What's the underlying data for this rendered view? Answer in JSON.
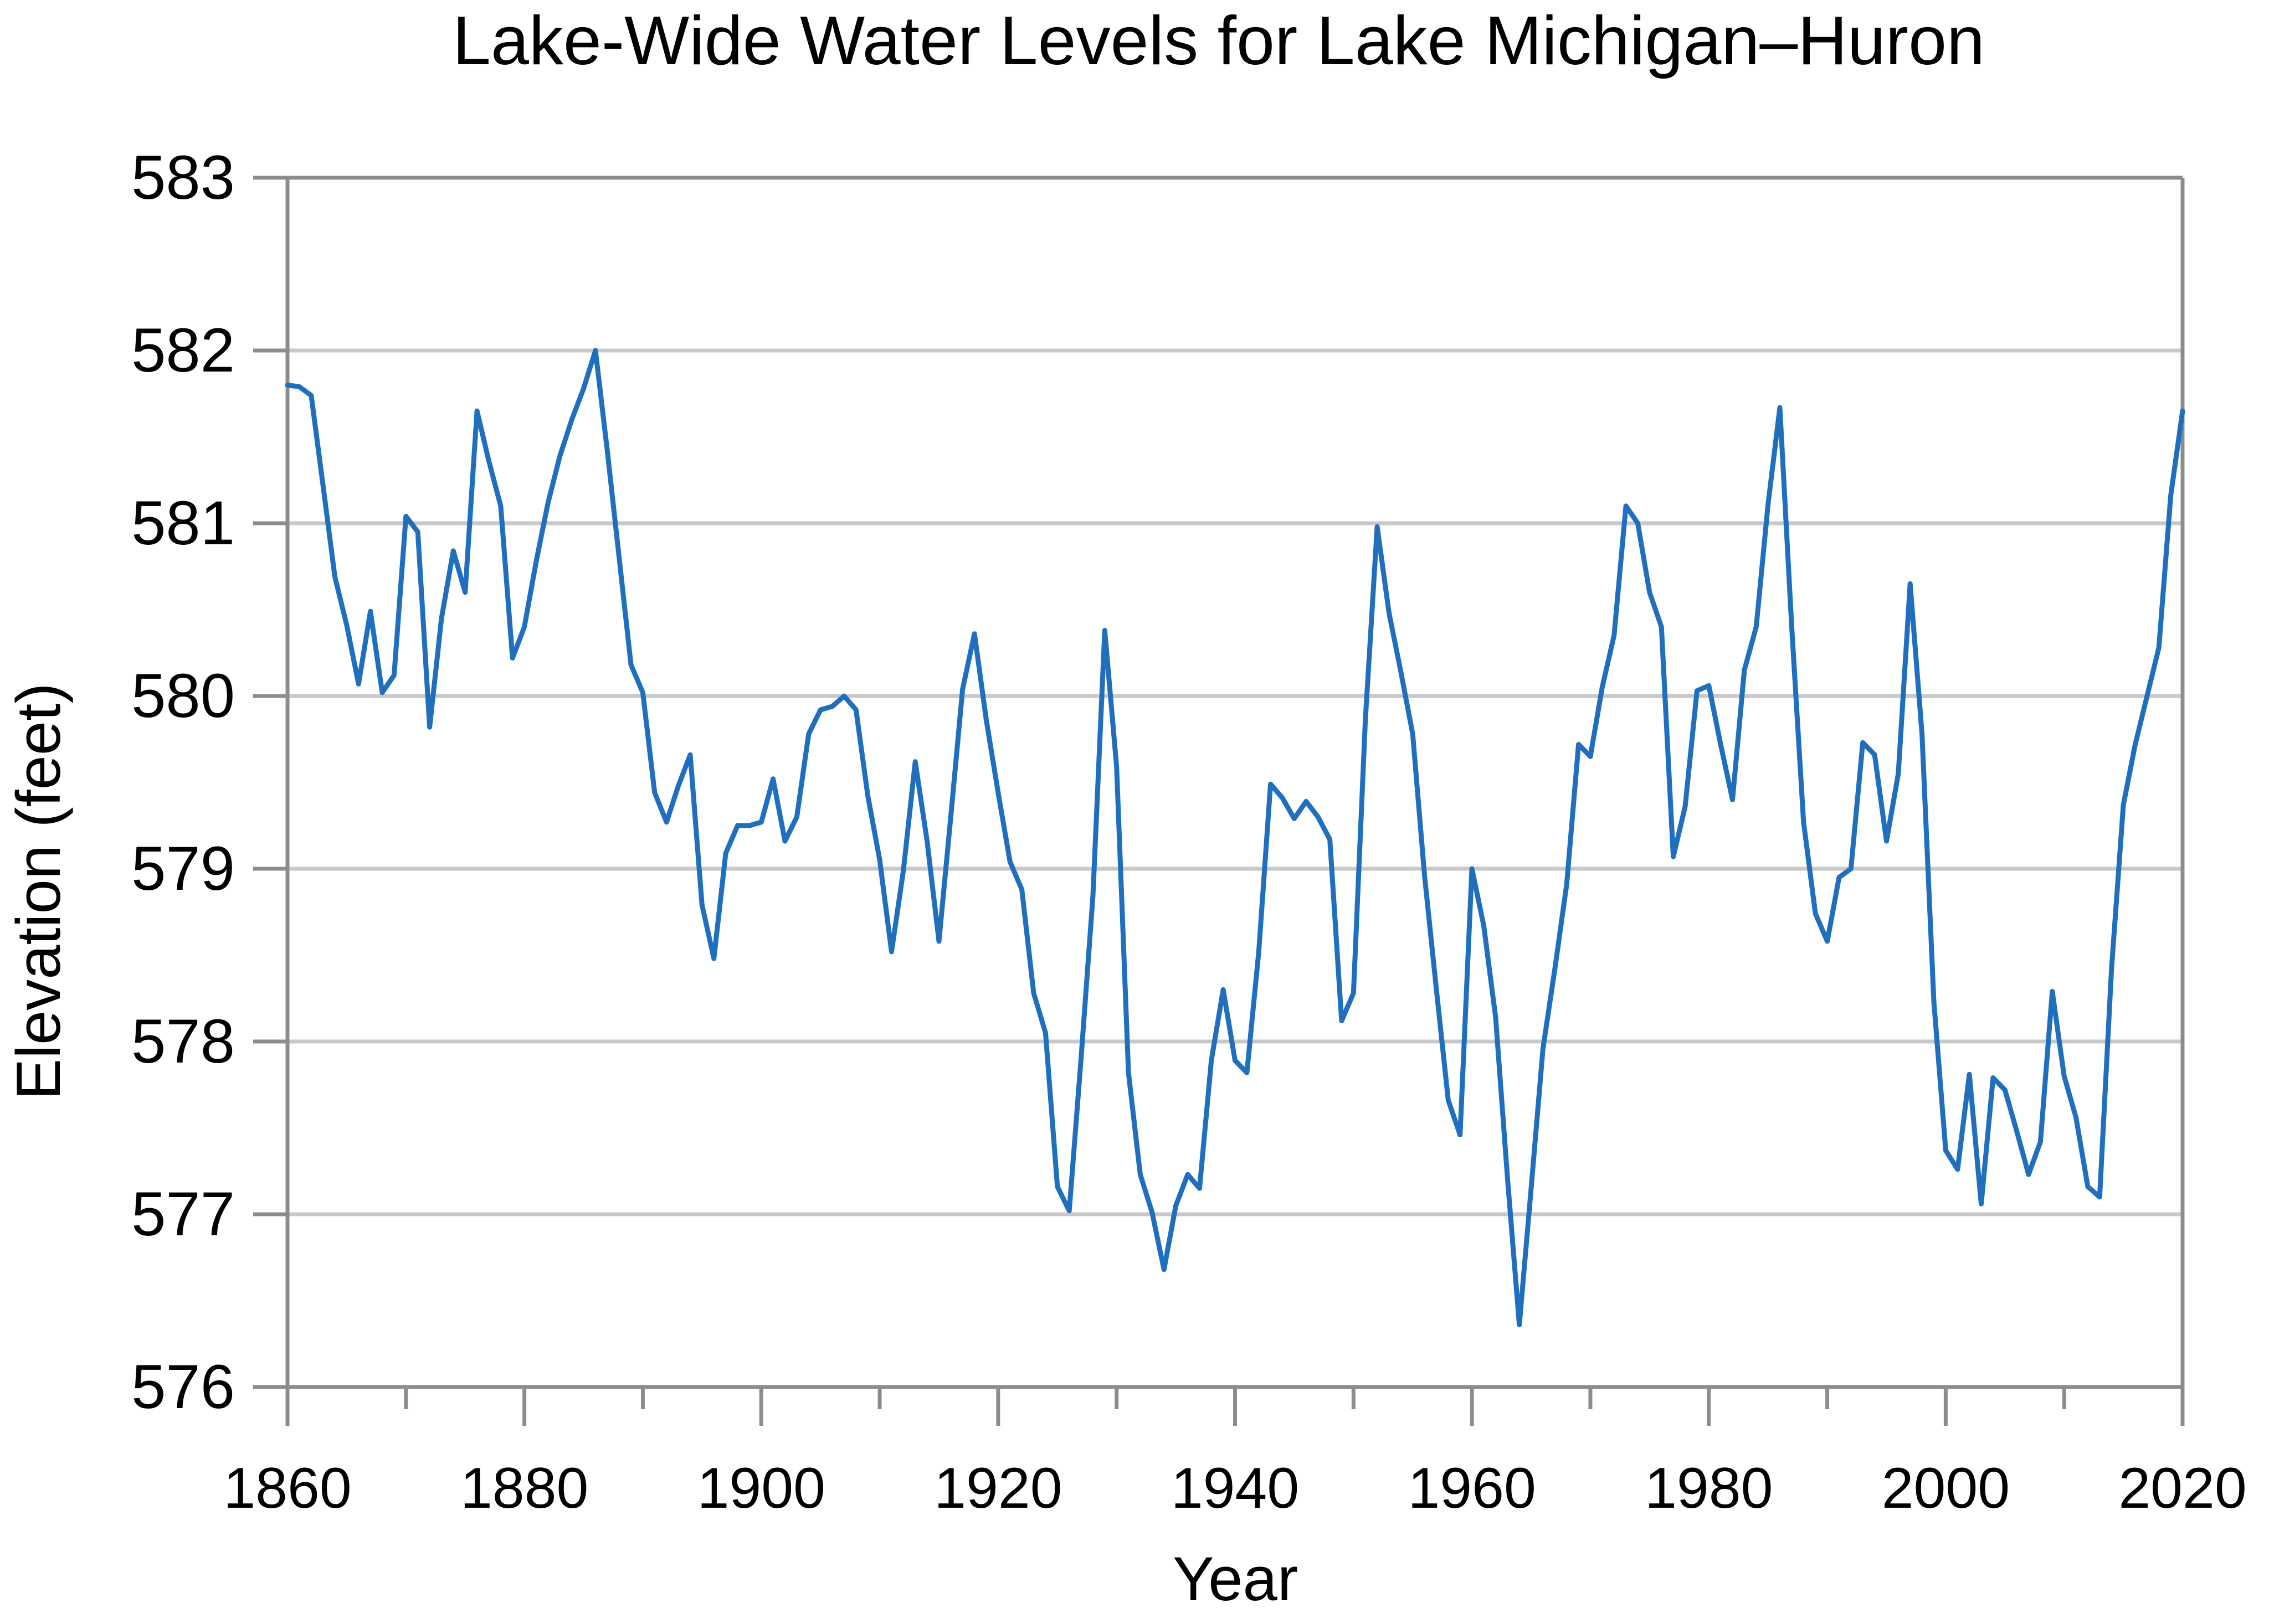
{
  "chart_data": {
    "type": "line",
    "title": "Lake-Wide Water Levels for Lake Michigan–Huron",
    "xlabel": "Year",
    "ylabel": "Elevation (feet)",
    "xlim": [
      1860,
      2020
    ],
    "ylim": [
      576,
      583
    ],
    "x_ticks": [
      1860,
      1880,
      1900,
      1920,
      1940,
      1960,
      1980,
      2000,
      2020
    ],
    "x_tick_labels": [
      "1860",
      "1880",
      "1900",
      "1920",
      "1940",
      "1960",
      "1980",
      "2000",
      "2020"
    ],
    "y_ticks": [
      576,
      577,
      578,
      579,
      580,
      581,
      582,
      583
    ],
    "y_tick_labels": [
      "576",
      "577",
      "578",
      "579",
      "580",
      "581",
      "582",
      "583"
    ],
    "grid": "horizontal",
    "legend": "none",
    "colors": {
      "series": "#1f6fbe",
      "grid": "#c8c8c8",
      "axis": "#8c8c8c",
      "text": "#000000"
    },
    "series": [
      {
        "name": "Lake Michigan–Huron",
        "x": [
          1860,
          1861,
          1862,
          1863,
          1864,
          1865,
          1866,
          1867,
          1868,
          1869,
          1870,
          1871,
          1872,
          1873,
          1874,
          1875,
          1876,
          1877,
          1878,
          1879,
          1880,
          1881,
          1882,
          1883,
          1884,
          1885,
          1886,
          1887,
          1888,
          1889,
          1890,
          1891,
          1892,
          1893,
          1894,
          1895,
          1896,
          1897,
          1898,
          1899,
          1900,
          1901,
          1902,
          1903,
          1904,
          1905,
          1906,
          1907,
          1908,
          1909,
          1910,
          1911,
          1912,
          1913,
          1914,
          1915,
          1916,
          1917,
          1918,
          1919,
          1920,
          1921,
          1922,
          1923,
          1924,
          1925,
          1926,
          1927,
          1928,
          1929,
          1930,
          1931,
          1932,
          1933,
          1934,
          1935,
          1936,
          1937,
          1938,
          1939,
          1940,
          1941,
          1942,
          1943,
          1944,
          1945,
          1946,
          1947,
          1948,
          1949,
          1950,
          1951,
          1952,
          1953,
          1954,
          1955,
          1956,
          1957,
          1958,
          1959,
          1960,
          1961,
          1962,
          1963,
          1964,
          1965,
          1966,
          1967,
          1968,
          1969,
          1970,
          1971,
          1972,
          1973,
          1974,
          1975,
          1976,
          1977,
          1978,
          1979,
          1980,
          1981,
          1982,
          1983,
          1984,
          1985,
          1986,
          1987,
          1988,
          1989,
          1990,
          1991,
          1992,
          1993,
          1994,
          1995,
          1996,
          1997,
          1998,
          1999,
          2000,
          2001,
          2002,
          2003,
          2004,
          2005,
          2006,
          2007,
          2008,
          2009,
          2010,
          2011,
          2012,
          2013,
          2014,
          2015,
          2016,
          2017,
          2018,
          2019,
          2020
        ],
        "y": [
          581.8,
          581.79,
          581.74,
          581.22,
          580.69,
          580.41,
          580.07,
          580.49,
          580.02,
          580.12,
          581.04,
          580.95,
          579.82,
          580.45,
          580.84,
          580.6,
          581.65,
          581.36,
          581.1,
          580.22,
          580.4,
          580.78,
          581.12,
          581.39,
          581.6,
          581.78,
          582.0,
          581.42,
          580.8,
          580.18,
          580.02,
          579.44,
          579.27,
          579.48,
          579.66,
          578.79,
          578.48,
          579.09,
          579.25,
          579.25,
          579.27,
          579.52,
          579.16,
          579.3,
          579.78,
          579.92,
          579.94,
          580.0,
          579.92,
          579.42,
          579.05,
          578.52,
          578.99,
          579.62,
          579.16,
          578.58,
          579.3,
          580.04,
          580.36,
          579.86,
          579.44,
          579.04,
          578.88,
          578.28,
          578.05,
          577.16,
          577.02,
          577.9,
          578.84,
          580.38,
          579.59,
          577.82,
          577.23,
          577.01,
          576.68,
          577.05,
          577.23,
          577.15,
          577.89,
          578.3,
          577.89,
          577.82,
          578.52,
          579.49,
          579.41,
          579.29,
          579.39,
          579.3,
          579.17,
          578.12,
          578.28,
          579.86,
          580.98,
          580.48,
          580.14,
          579.78,
          578.96,
          578.3,
          577.66,
          577.46,
          579.0,
          578.67,
          578.14,
          577.21,
          576.36,
          577.15,
          577.96,
          578.42,
          578.91,
          579.72,
          579.65,
          580.05,
          580.35,
          581.1,
          581.0,
          580.6,
          580.4,
          579.07,
          579.36,
          580.03,
          580.06,
          579.72,
          579.4,
          580.15,
          580.4,
          581.11,
          581.67,
          580.4,
          579.27,
          578.74,
          578.58,
          578.95,
          579.0,
          579.73,
          579.66,
          579.16,
          579.55,
          580.65,
          579.78,
          578.23,
          577.37,
          577.26,
          577.81,
          577.06,
          577.79,
          577.72,
          577.48,
          577.23,
          577.42,
          578.29,
          577.8,
          577.56,
          577.16,
          577.1,
          578.42,
          579.37,
          579.72,
          580.0,
          580.28,
          581.16,
          581.65
        ]
      }
    ]
  }
}
